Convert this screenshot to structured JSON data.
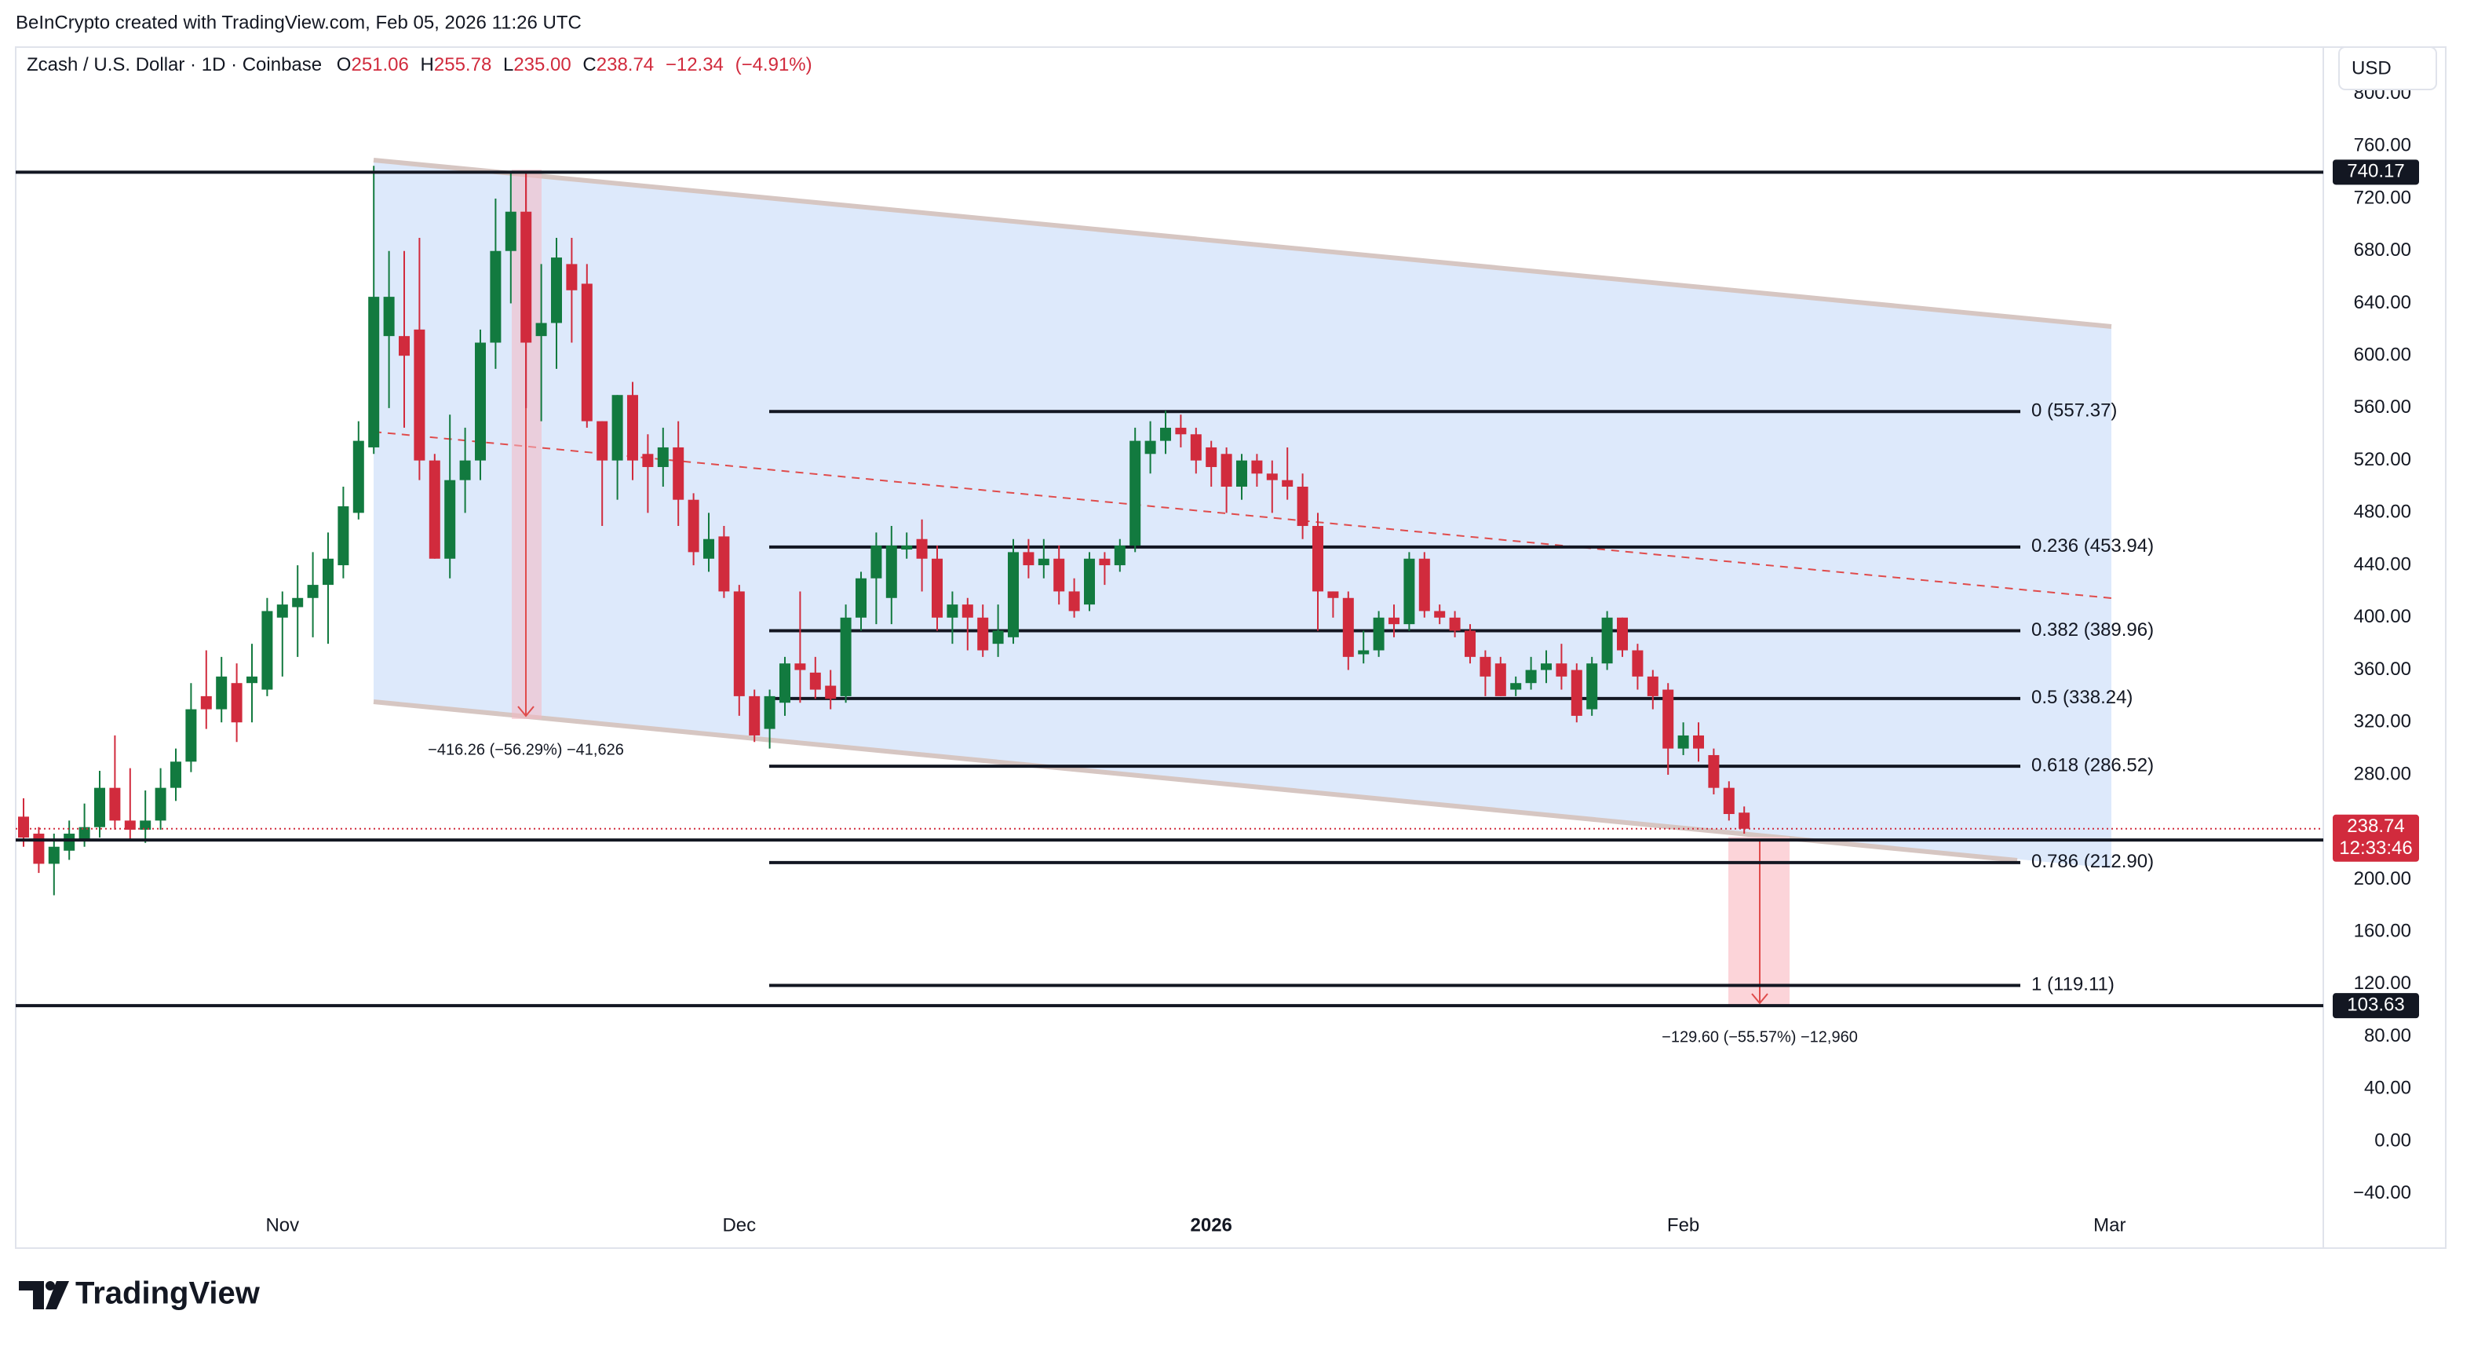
{
  "header": "BeInCrypto created with TradingView.com, Feb 05, 2026 11:26 UTC",
  "chart_data": {
    "type": "candlestick",
    "title": "Zcash / U.S. Dollar · 1D · Coinbase",
    "ohlc_prefixes": [
      "O",
      "H",
      "L",
      "C"
    ],
    "change": "−12.34",
    "change_pct": "(−4.91%)",
    "currency": "USD",
    "up_color": "#127a3f",
    "down_color": "#d12b3d",
    "grid": false,
    "categories": [
      null,
      null,
      null,
      null,
      null,
      null,
      null,
      null,
      null,
      null,
      null,
      null,
      null,
      null,
      null,
      null,
      null,
      "Nov",
      null,
      null,
      null,
      null,
      null,
      null,
      null,
      null,
      null,
      null,
      null,
      null,
      null,
      null,
      null,
      null,
      null,
      null,
      null,
      null,
      null,
      null,
      null,
      null,
      null,
      null,
      null,
      null,
      null,
      "Dec",
      null,
      null,
      null,
      null,
      null,
      null,
      null,
      null,
      null,
      null,
      null,
      null,
      null,
      null,
      null,
      null,
      null,
      null,
      null,
      null,
      null,
      null,
      null,
      null,
      null,
      null,
      null,
      null,
      null,
      null,
      "2026",
      null,
      null,
      null,
      null,
      null,
      null,
      null,
      null,
      null,
      null,
      null,
      null,
      null,
      null,
      null,
      null,
      null,
      null,
      null,
      null,
      null,
      null,
      null,
      null,
      null,
      null,
      null,
      null,
      null,
      null,
      "Feb",
      null,
      null,
      null,
      null,
      null,
      null,
      null,
      null,
      null,
      null,
      null,
      null,
      null,
      null,
      null,
      null,
      null,
      null,
      null,
      null,
      null,
      null,
      null,
      null,
      null,
      null,
      null,
      "Mar"
    ],
    "open": [
      248,
      235,
      212,
      222,
      230,
      240,
      270,
      245,
      238,
      245,
      270,
      290,
      340,
      330,
      350,
      350,
      345,
      400,
      408,
      415,
      425,
      440,
      480,
      530,
      615,
      615,
      620,
      520,
      445,
      505,
      520,
      610,
      680,
      710,
      615,
      625,
      670,
      655,
      550,
      520,
      570,
      525,
      515,
      530,
      490,
      445,
      462,
      420,
      340,
      315,
      335,
      365,
      358,
      348,
      340,
      400,
      430,
      415,
      452,
      460,
      445,
      400,
      410,
      400,
      380,
      385,
      450,
      440,
      445,
      420,
      410,
      445,
      440,
      455,
      525,
      535,
      545,
      540,
      530,
      525,
      500,
      520,
      510,
      505,
      500,
      470,
      420,
      415,
      372,
      375,
      400,
      395,
      445,
      405,
      400,
      390,
      370,
      365,
      345,
      350,
      360,
      365,
      360,
      330,
      365,
      400,
      375,
      355,
      345,
      300,
      310,
      295,
      270,
      251.06,
      null,
      null,
      null,
      null,
      null,
      null,
      null,
      null,
      null,
      null,
      null,
      null,
      null,
      null,
      null,
      null,
      null,
      null,
      null,
      null,
      null,
      null,
      null,
      null
    ],
    "high": [
      262,
      240,
      235,
      245,
      258,
      283,
      310,
      285,
      268,
      285,
      300,
      350,
      375,
      370,
      365,
      380,
      415,
      420,
      440,
      450,
      465,
      500,
      550,
      745,
      680,
      680,
      690,
      525,
      555,
      545,
      620,
      720,
      740,
      740,
      670,
      690,
      690,
      670,
      550,
      570,
      580,
      540,
      545,
      550,
      495,
      480,
      470,
      425,
      345,
      345,
      370,
      420,
      370,
      360,
      410,
      435,
      465,
      470,
      465,
      475,
      455,
      420,
      415,
      410,
      410,
      460,
      460,
      460,
      455,
      430,
      450,
      450,
      460,
      545,
      550,
      558,
      555,
      545,
      535,
      530,
      525,
      525,
      520,
      530,
      510,
      480,
      420,
      420,
      390,
      405,
      410,
      450,
      450,
      410,
      405,
      395,
      375,
      370,
      355,
      370,
      375,
      380,
      365,
      370,
      405,
      400,
      380,
      360,
      350,
      320,
      320,
      300,
      275,
      255.78,
      null,
      null,
      null,
      null,
      null,
      null,
      null,
      null,
      null,
      null,
      null,
      null,
      null,
      null,
      null,
      null,
      null,
      null,
      null,
      null,
      null,
      null,
      null,
      null
    ],
    "low": [
      225,
      205,
      188,
      215,
      225,
      232,
      238,
      230,
      228,
      238,
      260,
      282,
      315,
      320,
      305,
      320,
      340,
      355,
      370,
      385,
      380,
      430,
      475,
      525,
      560,
      545,
      505,
      445,
      430,
      480,
      505,
      590,
      640,
      560,
      550,
      590,
      610,
      545,
      470,
      490,
      505,
      480,
      500,
      470,
      440,
      435,
      415,
      325,
      305,
      300,
      325,
      335,
      338,
      330,
      335,
      390,
      395,
      395,
      445,
      420,
      390,
      380,
      375,
      370,
      370,
      380,
      430,
      430,
      410,
      400,
      405,
      425,
      435,
      450,
      510,
      525,
      530,
      510,
      500,
      480,
      490,
      500,
      480,
      490,
      460,
      390,
      400,
      360,
      365,
      370,
      385,
      390,
      400,
      395,
      385,
      365,
      340,
      340,
      340,
      345,
      350,
      345,
      320,
      325,
      360,
      370,
      345,
      330,
      280,
      295,
      290,
      265,
      245,
      235.0,
      null,
      null,
      null,
      null,
      null,
      null,
      null,
      null,
      null,
      null,
      null,
      null,
      null,
      null,
      null,
      null,
      null,
      null,
      null,
      null,
      null,
      null,
      null,
      null
    ],
    "close": [
      232,
      212,
      225,
      235,
      240,
      270,
      245,
      238,
      245,
      270,
      290,
      330,
      330,
      355,
      320,
      355,
      405,
      410,
      415,
      425,
      445,
      485,
      535,
      645,
      645,
      600,
      520,
      445,
      505,
      520,
      610,
      680,
      710,
      610,
      625,
      675,
      650,
      550,
      520,
      570,
      520,
      515,
      530,
      490,
      450,
      460,
      420,
      340,
      310,
      340,
      365,
      360,
      345,
      338,
      400,
      430,
      455,
      455,
      455,
      445,
      400,
      410,
      400,
      375,
      390,
      450,
      440,
      445,
      420,
      405,
      445,
      440,
      455,
      535,
      535,
      545,
      540,
      520,
      515,
      500,
      520,
      510,
      505,
      500,
      470,
      420,
      415,
      370,
      375,
      400,
      395,
      445,
      405,
      400,
      390,
      370,
      355,
      340,
      350,
      360,
      365,
      355,
      325,
      365,
      400,
      375,
      355,
      340,
      300,
      310,
      300,
      270,
      250,
      238.74,
      null,
      null,
      null,
      null,
      null,
      null,
      null,
      null,
      null,
      null,
      null,
      null,
      null,
      null,
      null,
      null,
      null,
      null,
      null,
      null,
      null,
      null,
      null,
      null
    ],
    "countdown": "12:33:46",
    "ylim": [
      -81.5,
      835.7
    ],
    "yticks": [
      {
        "value": -40,
        "label": "−40.00"
      },
      {
        "value": 0,
        "label": "0.00"
      },
      {
        "value": 40,
        "label": "40.00"
      },
      {
        "value": 80,
        "label": "80.00"
      },
      {
        "value": 120,
        "label": "120.00"
      },
      {
        "value": 160,
        "label": "160.00"
      },
      {
        "value": 200,
        "label": "200.00"
      },
      {
        "value": 240,
        "label": "240.00"
      },
      {
        "value": 280,
        "label": "280.00"
      },
      {
        "value": 320,
        "label": "320.00"
      },
      {
        "value": 360,
        "label": "360.00"
      },
      {
        "value": 400,
        "label": "400.00"
      },
      {
        "value": 440,
        "label": "440.00"
      },
      {
        "value": 480,
        "label": "480.00"
      },
      {
        "value": 520,
        "label": "520.00"
      },
      {
        "value": 560,
        "label": "560.00"
      },
      {
        "value": 600,
        "label": "600.00"
      },
      {
        "value": 640,
        "label": "640.00"
      },
      {
        "value": 680,
        "label": "680.00"
      },
      {
        "value": 720,
        "label": "720.00"
      },
      {
        "value": 760,
        "label": "760.00"
      },
      {
        "value": 800,
        "label": "800.00"
      }
    ],
    "horizontal_lines": [
      740.17,
      230.12,
      103.63
    ],
    "fib_levels": [
      {
        "value": 557.37,
        "label": "0 (557.37)"
      },
      {
        "value": 453.94,
        "label": "0.236 (453.94)"
      },
      {
        "value": 389.96,
        "label": "0.382 (389.96)"
      },
      {
        "value": 338.24,
        "label": "0.5 (338.24)"
      },
      {
        "value": 286.52,
        "label": "0.618 (286.52)"
      },
      {
        "value": 212.9,
        "label": "0.786 (212.90)"
      },
      {
        "value": 119.11,
        "label": "1 (119.11)"
      }
    ],
    "measures": [
      "−416.26 (−56.29%) −41,626",
      "−129.60 (−55.57%) −12,960"
    ]
  },
  "logo_text": "TradingView"
}
